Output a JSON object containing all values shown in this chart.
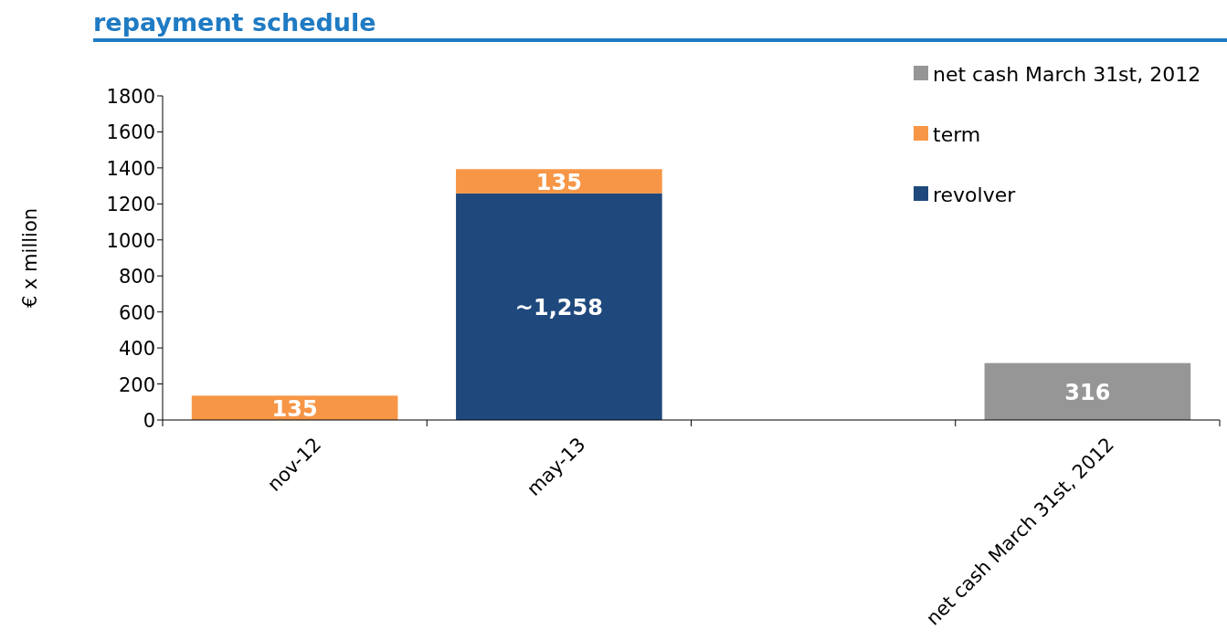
{
  "chart_data": {
    "type": "bar",
    "title": "repayment schedule",
    "ylabel": "€ x million",
    "categories": [
      "nov-12",
      "may-13",
      null,
      "net cash March 31st, 2012"
    ],
    "stacked": true,
    "ylim": [
      0,
      1800
    ],
    "yticks": [
      0,
      200,
      400,
      600,
      800,
      1000,
      1200,
      1400,
      1600,
      1800
    ],
    "legend": "top right",
    "series": [
      {
        "name": "revolver",
        "color": "#1f497d",
        "values": [
          null,
          1258,
          null,
          null
        ],
        "value_labels": [
          null,
          "~1,258",
          null,
          null
        ]
      },
      {
        "name": "term",
        "color": "#f79646",
        "values": [
          135,
          135,
          null,
          null
        ],
        "value_labels": [
          "135",
          "135",
          null,
          null
        ]
      },
      {
        "name": "net cash March 31st, 2012",
        "color": "#969696",
        "values": [
          null,
          null,
          null,
          316
        ],
        "value_labels": [
          null,
          null,
          null,
          "316"
        ]
      }
    ]
  }
}
